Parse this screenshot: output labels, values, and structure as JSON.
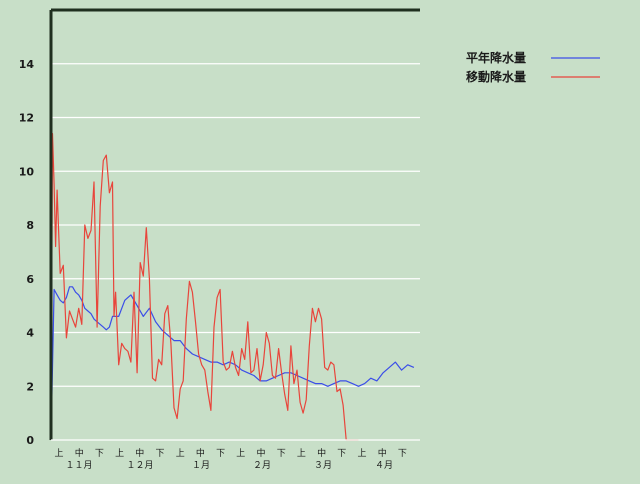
{
  "colors": {
    "background": "#c8dfc8",
    "grid": "#ffffff",
    "axis": "#1f2f1f",
    "normal": "#3b4ee8",
    "moving": "#e8453b"
  },
  "chart_data": {
    "type": "line",
    "title": "",
    "xlabel": "",
    "ylabel": "",
    "ylim": [
      0,
      16
    ],
    "y_ticks": [
      0,
      2,
      4,
      6,
      8,
      10,
      12,
      14
    ],
    "grid": true,
    "legend_position": "top-right",
    "x_unit": "half-month from Nov 1 (0 = Nov 1)",
    "xlim": [
      0,
      12.0
    ],
    "dekad_ticks": [
      "上",
      "中",
      "下",
      "上",
      "中",
      "下",
      "上",
      "中",
      "下",
      "上",
      "中",
      "下",
      "上",
      "中",
      "下",
      "上",
      "中",
      "下"
    ],
    "month_labels": [
      "１１月",
      "１２月",
      "１月",
      "２月",
      "３月",
      "４月"
    ],
    "series": [
      {
        "name": "平年降水量",
        "color": "#3b4ee8",
        "x": [
          0,
          0.1,
          0.2,
          0.3,
          0.4,
          0.5,
          0.6,
          0.7,
          0.8,
          0.9,
          1.0,
          1.1,
          1.2,
          1.3,
          1.4,
          1.5,
          1.6,
          1.7,
          1.8,
          1.9,
          2.0,
          2.2,
          2.4,
          2.6,
          2.8,
          3.0,
          3.2,
          3.4,
          3.6,
          3.8,
          4.0,
          4.2,
          4.4,
          4.6,
          4.8,
          5.0,
          5.2,
          5.4,
          5.6,
          5.8,
          6.0,
          6.2,
          6.4,
          6.6,
          6.8,
          7.0,
          7.2,
          7.4,
          7.6,
          7.8,
          8.0,
          8.2,
          8.4,
          8.6,
          8.8,
          9.0,
          9.2,
          9.4,
          9.6,
          9.8,
          10.0,
          10.2,
          10.4,
          10.6,
          10.8,
          11.0,
          11.2,
          11.4,
          11.6,
          11.8
        ],
        "values": [
          0.0,
          5.6,
          5.4,
          5.2,
          5.1,
          5.3,
          5.7,
          5.7,
          5.5,
          5.4,
          5.2,
          4.9,
          4.8,
          4.7,
          4.5,
          4.4,
          4.3,
          4.2,
          4.1,
          4.2,
          4.6,
          4.6,
          5.2,
          5.4,
          5.0,
          4.6,
          4.9,
          4.4,
          4.1,
          3.9,
          3.7,
          3.7,
          3.4,
          3.2,
          3.1,
          3.0,
          2.9,
          2.9,
          2.8,
          2.9,
          2.8,
          2.6,
          2.5,
          2.4,
          2.2,
          2.2,
          2.3,
          2.4,
          2.5,
          2.5,
          2.4,
          2.3,
          2.2,
          2.1,
          2.1,
          2.0,
          2.1,
          2.2,
          2.2,
          2.1,
          2.0,
          2.1,
          2.3,
          2.2,
          2.5,
          2.7,
          2.9,
          2.6,
          2.8,
          2.7
        ]
      },
      {
        "name": "移動降水量",
        "color": "#e8453b",
        "x": [
          0,
          0.05,
          0.1,
          0.15,
          0.2,
          0.3,
          0.4,
          0.5,
          0.6,
          0.7,
          0.8,
          0.9,
          1.0,
          1.1,
          1.2,
          1.3,
          1.4,
          1.5,
          1.6,
          1.7,
          1.8,
          1.9,
          2.0,
          2.05,
          2.1,
          2.2,
          2.3,
          2.4,
          2.5,
          2.6,
          2.7,
          2.8,
          2.9,
          3.0,
          3.1,
          3.2,
          3.3,
          3.4,
          3.5,
          3.6,
          3.7,
          3.8,
          3.9,
          4.0,
          4.1,
          4.2,
          4.3,
          4.4,
          4.5,
          4.6,
          4.7,
          4.8,
          4.9,
          5.0,
          5.1,
          5.2,
          5.3,
          5.4,
          5.5,
          5.6,
          5.7,
          5.8,
          5.9,
          6.0,
          6.1,
          6.2,
          6.3,
          6.4,
          6.5,
          6.6,
          6.7,
          6.8,
          6.9,
          7.0,
          7.1,
          7.2,
          7.3,
          7.4,
          7.5,
          7.6,
          7.7,
          7.8,
          7.9,
          8.0,
          8.1,
          8.2,
          8.3,
          8.4,
          8.5,
          8.6,
          8.7,
          8.8,
          8.9,
          9.0,
          9.1,
          9.2,
          9.3,
          9.4,
          9.5,
          9.6,
          9.7,
          9.8,
          9.9,
          10.0
        ],
        "values": [
          0.0,
          11.4,
          9.5,
          7.2,
          9.3,
          6.2,
          6.5,
          3.8,
          4.8,
          4.5,
          4.2,
          4.9,
          4.3,
          8.0,
          7.5,
          7.8,
          9.6,
          4.2,
          8.7,
          10.4,
          10.6,
          9.2,
          9.6,
          4.6,
          5.5,
          2.8,
          3.6,
          3.4,
          3.3,
          2.9,
          5.5,
          2.5,
          6.6,
          6.1,
          7.9,
          6.0,
          2.3,
          2.2,
          3.0,
          2.8,
          4.7,
          5.0,
          3.6,
          1.2,
          0.8,
          1.9,
          2.2,
          4.5,
          5.9,
          5.5,
          4.4,
          3.2,
          2.8,
          2.6,
          1.8,
          1.1,
          4.2,
          5.3,
          5.6,
          2.9,
          2.6,
          2.7,
          3.3,
          2.7,
          2.4,
          3.4,
          3.0,
          4.4,
          2.5,
          2.6,
          3.4,
          2.2,
          2.8,
          4.0,
          3.6,
          2.4,
          2.3,
          3.4,
          2.5,
          1.7,
          1.1,
          3.5,
          2.1,
          2.6,
          1.4,
          1.0,
          1.5,
          3.5,
          4.9,
          4.4,
          4.9,
          4.5,
          2.7,
          2.6,
          2.9,
          2.8,
          1.8,
          1.9,
          1.3,
          0.0,
          0.0,
          0.0,
          0.0,
          0.0
        ]
      }
    ]
  },
  "legend": {
    "items": [
      {
        "label": "平年降水量",
        "color": "#3b4ee8"
      },
      {
        "label": "移動降水量",
        "color": "#e8453b"
      }
    ]
  }
}
